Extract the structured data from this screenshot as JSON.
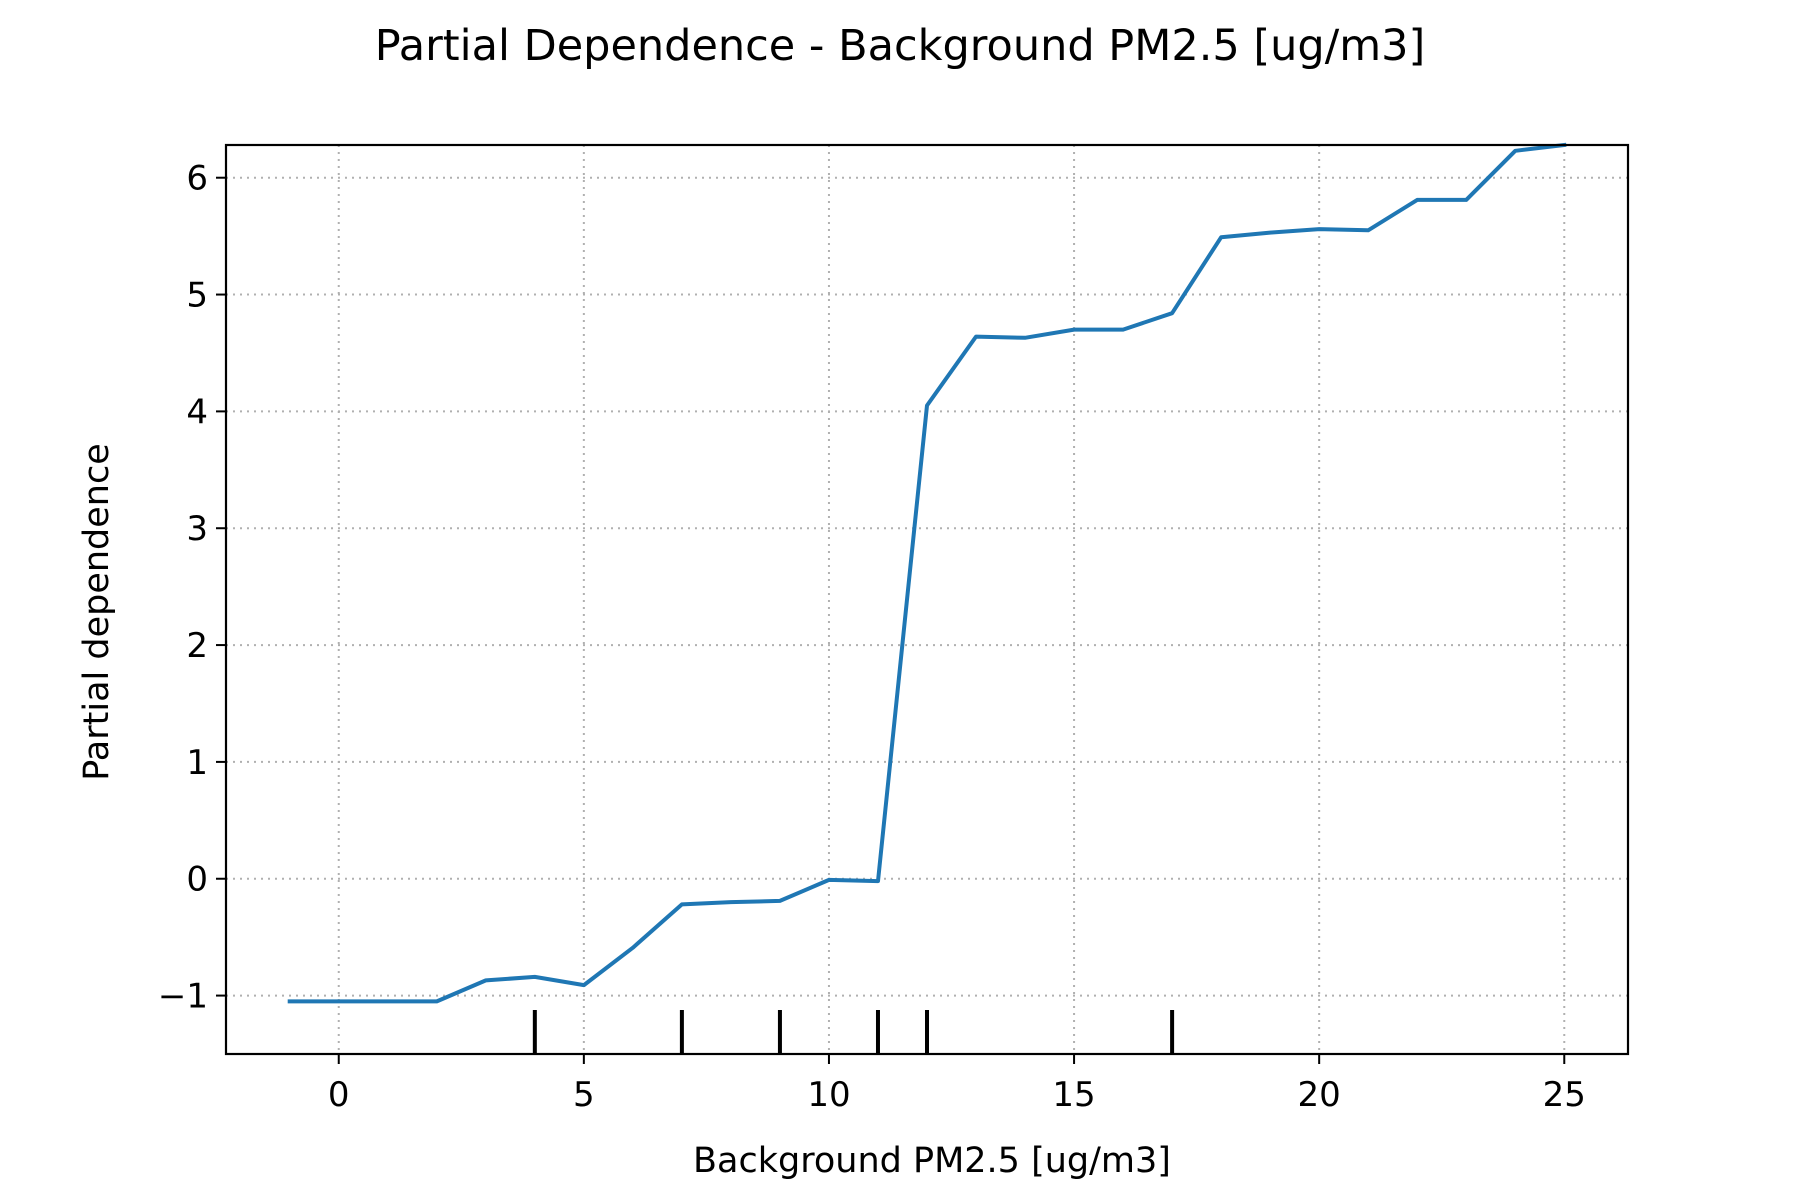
{
  "chart_data": {
    "type": "line",
    "title": "Partial Dependence - Background PM2.5 [ug/m3]",
    "xlabel": "Background PM2.5 [ug/m3]",
    "ylabel": "Partial dependence",
    "xlim": [
      -2.3,
      26.3
    ],
    "ylim": [
      -1.5,
      6.28
    ],
    "x_ticks": [
      0,
      5,
      10,
      15,
      20,
      25
    ],
    "y_ticks": [
      -1,
      0,
      1,
      2,
      3,
      4,
      5,
      6
    ],
    "x_tick_labels": [
      "0",
      "5",
      "10",
      "15",
      "20",
      "25"
    ],
    "y_tick_labels": [
      "−1",
      "0",
      "1",
      "2",
      "3",
      "4",
      "5",
      "6"
    ],
    "grid": true,
    "series": [
      {
        "color": "#1f77b4",
        "x": [
          -1,
          0,
          1,
          2,
          3,
          4,
          5,
          6,
          7,
          8,
          9,
          10,
          11,
          12,
          13,
          14,
          15,
          16,
          17,
          18,
          19,
          20,
          21,
          22,
          23,
          24,
          25
        ],
        "y": [
          -1.05,
          -1.05,
          -1.05,
          -1.05,
          -0.87,
          -0.84,
          -0.91,
          -0.59,
          -0.22,
          -0.2,
          -0.19,
          -0.01,
          -0.02,
          4.05,
          4.64,
          4.63,
          4.7,
          4.7,
          4.84,
          5.49,
          5.53,
          5.56,
          5.55,
          5.81,
          5.81,
          6.23,
          6.28
        ]
      }
    ],
    "rug_x": [
      4,
      7,
      9,
      11,
      12,
      17
    ]
  }
}
